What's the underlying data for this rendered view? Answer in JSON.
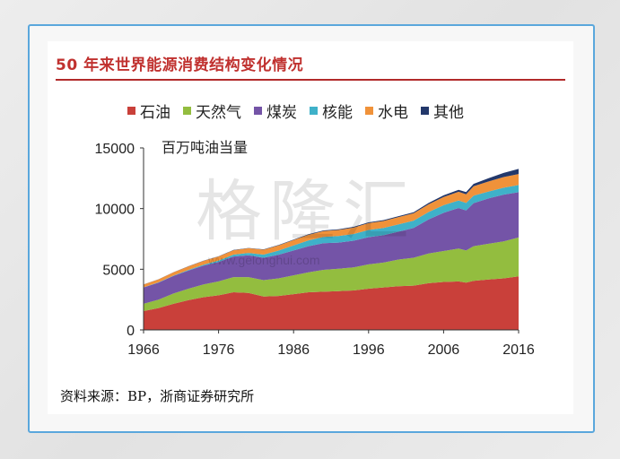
{
  "header": {
    "title": "50 年来世界能源消费结构变化情况"
  },
  "legend": {
    "items": [
      {
        "label": "石油",
        "color": "#c9403a"
      },
      {
        "label": "天然气",
        "color": "#93bd3f"
      },
      {
        "label": "煤炭",
        "color": "#7454a7"
      },
      {
        "label": "核能",
        "color": "#3fb1c9"
      },
      {
        "label": "水电",
        "color": "#f0923a"
      },
      {
        "label": "其他",
        "color": "#23386b"
      }
    ]
  },
  "watermark": {
    "text": "格隆汇",
    "url": "www.gelonghui.com"
  },
  "source": {
    "text": "资料来源：BP，浙商证券研究所"
  },
  "chart_data": {
    "type": "area",
    "stacked": true,
    "ylabel": "百万吨油当量",
    "xlim": [
      1966,
      2016
    ],
    "ylim": [
      0,
      15000
    ],
    "xticks": [
      1966,
      1976,
      1986,
      1996,
      2006,
      2016
    ],
    "yticks": [
      0,
      5000,
      10000,
      15000
    ],
    "x": [
      1966,
      1968,
      1970,
      1972,
      1974,
      1976,
      1978,
      1980,
      1982,
      1984,
      1986,
      1988,
      1990,
      1992,
      1994,
      1996,
      1998,
      2000,
      2002,
      2004,
      2006,
      2008,
      2009,
      2010,
      2012,
      2014,
      2016
    ],
    "series": [
      {
        "name": "石油",
        "values": [
          1550,
          1800,
          2150,
          2450,
          2700,
          2850,
          3100,
          3050,
          2750,
          2800,
          2950,
          3100,
          3150,
          3200,
          3250,
          3400,
          3500,
          3600,
          3650,
          3850,
          3950,
          4000,
          3900,
          4050,
          4150,
          4250,
          4420
        ]
      },
      {
        "name": "天然气",
        "values": [
          600,
          700,
          850,
          950,
          1050,
          1150,
          1250,
          1300,
          1350,
          1450,
          1550,
          1650,
          1800,
          1850,
          1900,
          2000,
          2050,
          2200,
          2300,
          2450,
          2550,
          2700,
          2650,
          2850,
          2950,
          3050,
          3200
        ]
      },
      {
        "name": "煤炭",
        "values": [
          1350,
          1400,
          1450,
          1500,
          1550,
          1600,
          1700,
          1800,
          1850,
          1950,
          2050,
          2150,
          2200,
          2150,
          2200,
          2250,
          2250,
          2300,
          2450,
          2800,
          3150,
          3350,
          3300,
          3550,
          3750,
          3850,
          3730
        ]
      },
      {
        "name": "核能",
        "values": [
          10,
          20,
          30,
          50,
          80,
          120,
          160,
          200,
          260,
          340,
          420,
          480,
          520,
          540,
          560,
          590,
          600,
          600,
          610,
          620,
          630,
          620,
          610,
          620,
          560,
          570,
          590
        ]
      },
      {
        "name": "水电",
        "values": [
          230,
          250,
          270,
          290,
          310,
          330,
          360,
          380,
          400,
          420,
          440,
          460,
          480,
          500,
          520,
          560,
          580,
          600,
          600,
          630,
          680,
          720,
          720,
          770,
          830,
          880,
          910
        ]
      },
      {
        "name": "其他",
        "values": [
          5,
          5,
          10,
          10,
          15,
          15,
          20,
          25,
          30,
          35,
          40,
          45,
          55,
          60,
          65,
          70,
          75,
          80,
          90,
          110,
          130,
          160,
          180,
          200,
          270,
          340,
          420
        ]
      }
    ]
  }
}
